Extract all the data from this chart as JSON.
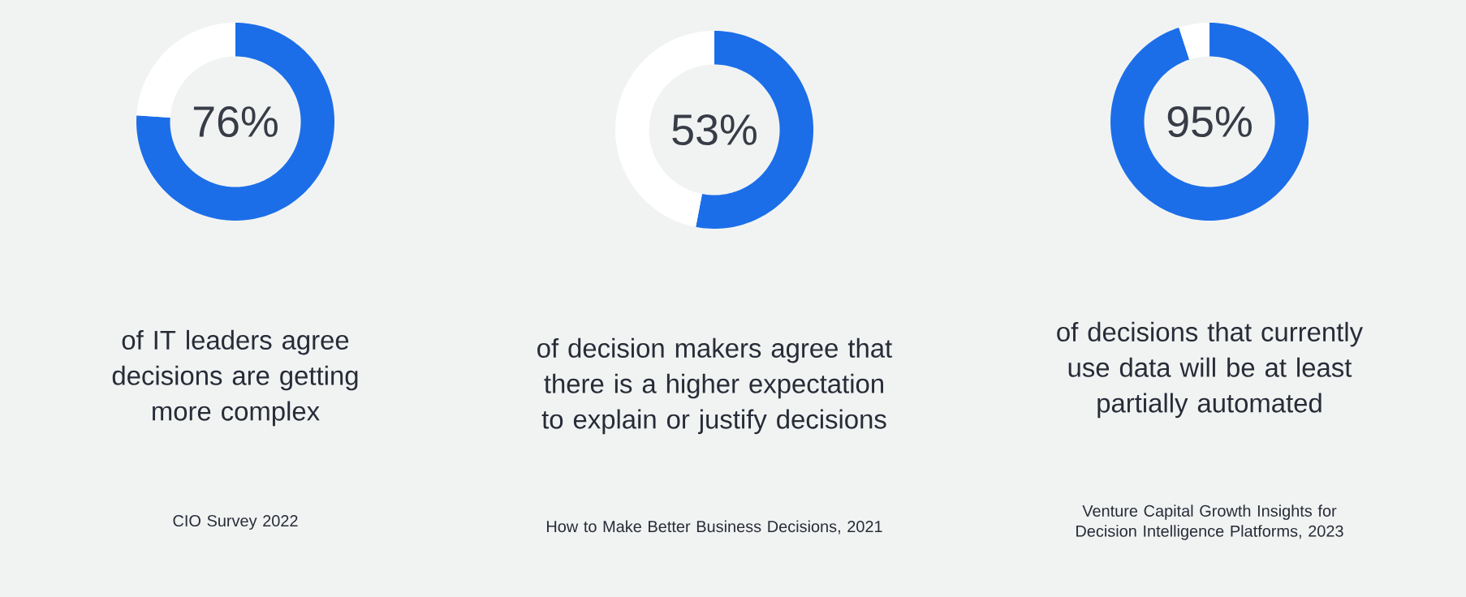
{
  "chart_data": [
    {
      "type": "donut",
      "categories": [
        null,
        null
      ],
      "values": [
        76,
        24
      ],
      "colors": [
        "#1c6ee8",
        "#ffffff"
      ],
      "value_labels": [
        "76%",
        null
      ],
      "annotations": [
        "of IT leaders agree decisions are getting more complex",
        "CIO Survey 2022"
      ]
    },
    {
      "type": "donut",
      "categories": [
        null,
        null
      ],
      "values": [
        53,
        47
      ],
      "colors": [
        "#1c6ee8",
        "#ffffff"
      ],
      "value_labels": [
        "53%",
        null
      ],
      "annotations": [
        "of decision makers agree that there is a higher expectation to explain or justify decisions",
        "How to Make Better Business Decisions, 2021"
      ]
    },
    {
      "type": "donut",
      "categories": [
        null,
        null
      ],
      "values": [
        95,
        5
      ],
      "colors": [
        "#1c6ee8",
        "#ffffff"
      ],
      "value_labels": [
        "95%",
        null
      ],
      "annotations": [
        "of decisions that currently use data will be at least partially automated",
        "Venture Capital Growth Insights for Decision Intelligence Platforms, 2023"
      ]
    }
  ]
}
